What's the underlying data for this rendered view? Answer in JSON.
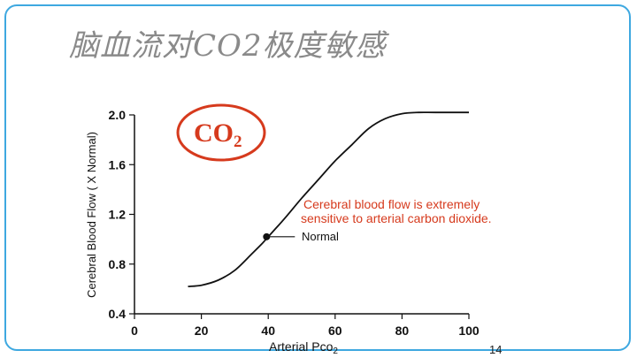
{
  "slide": {
    "title": "脑血流对CO2极度敏感",
    "page_number": "14",
    "border_color": "#3ea8e0",
    "accent_color": "#d63a1d"
  },
  "chart_data": {
    "type": "line",
    "xlabel_main": "Arterial Pco",
    "xlabel_sub": "2",
    "ylabel": "Cerebral Blood Flow ( X Normal)",
    "xlim": [
      0,
      100
    ],
    "ylim": [
      0.4,
      2.0
    ],
    "xticks": [
      0,
      20,
      40,
      60,
      80,
      100
    ],
    "yticks": [
      0.4,
      0.8,
      1.2,
      1.6,
      2.0
    ],
    "xtick_labels": [
      "0",
      "20",
      "40",
      "60",
      "80",
      "100"
    ],
    "ytick_labels": [
      "0.4",
      "0.8",
      "1.2",
      "1.6",
      "2.0"
    ],
    "grid": false,
    "series": [
      {
        "x": [
          16,
          20,
          25,
          30,
          35,
          38,
          40,
          42,
          45,
          50,
          55,
          60,
          65,
          70,
          75,
          80,
          85,
          90,
          100
        ],
        "y": [
          0.62,
          0.63,
          0.67,
          0.75,
          0.88,
          0.96,
          1.02,
          1.08,
          1.17,
          1.33,
          1.48,
          1.63,
          1.76,
          1.89,
          1.97,
          2.01,
          2.02,
          2.02,
          2.02
        ]
      }
    ],
    "marker": {
      "x": 39.5,
      "y": 1.02,
      "label": "Normal"
    },
    "annotation_lines": [
      "Cerebral blood flow is extremely",
      "sensitive to arterial carbon dioxide."
    ],
    "badge": {
      "main": "CO",
      "sub": "2"
    }
  }
}
